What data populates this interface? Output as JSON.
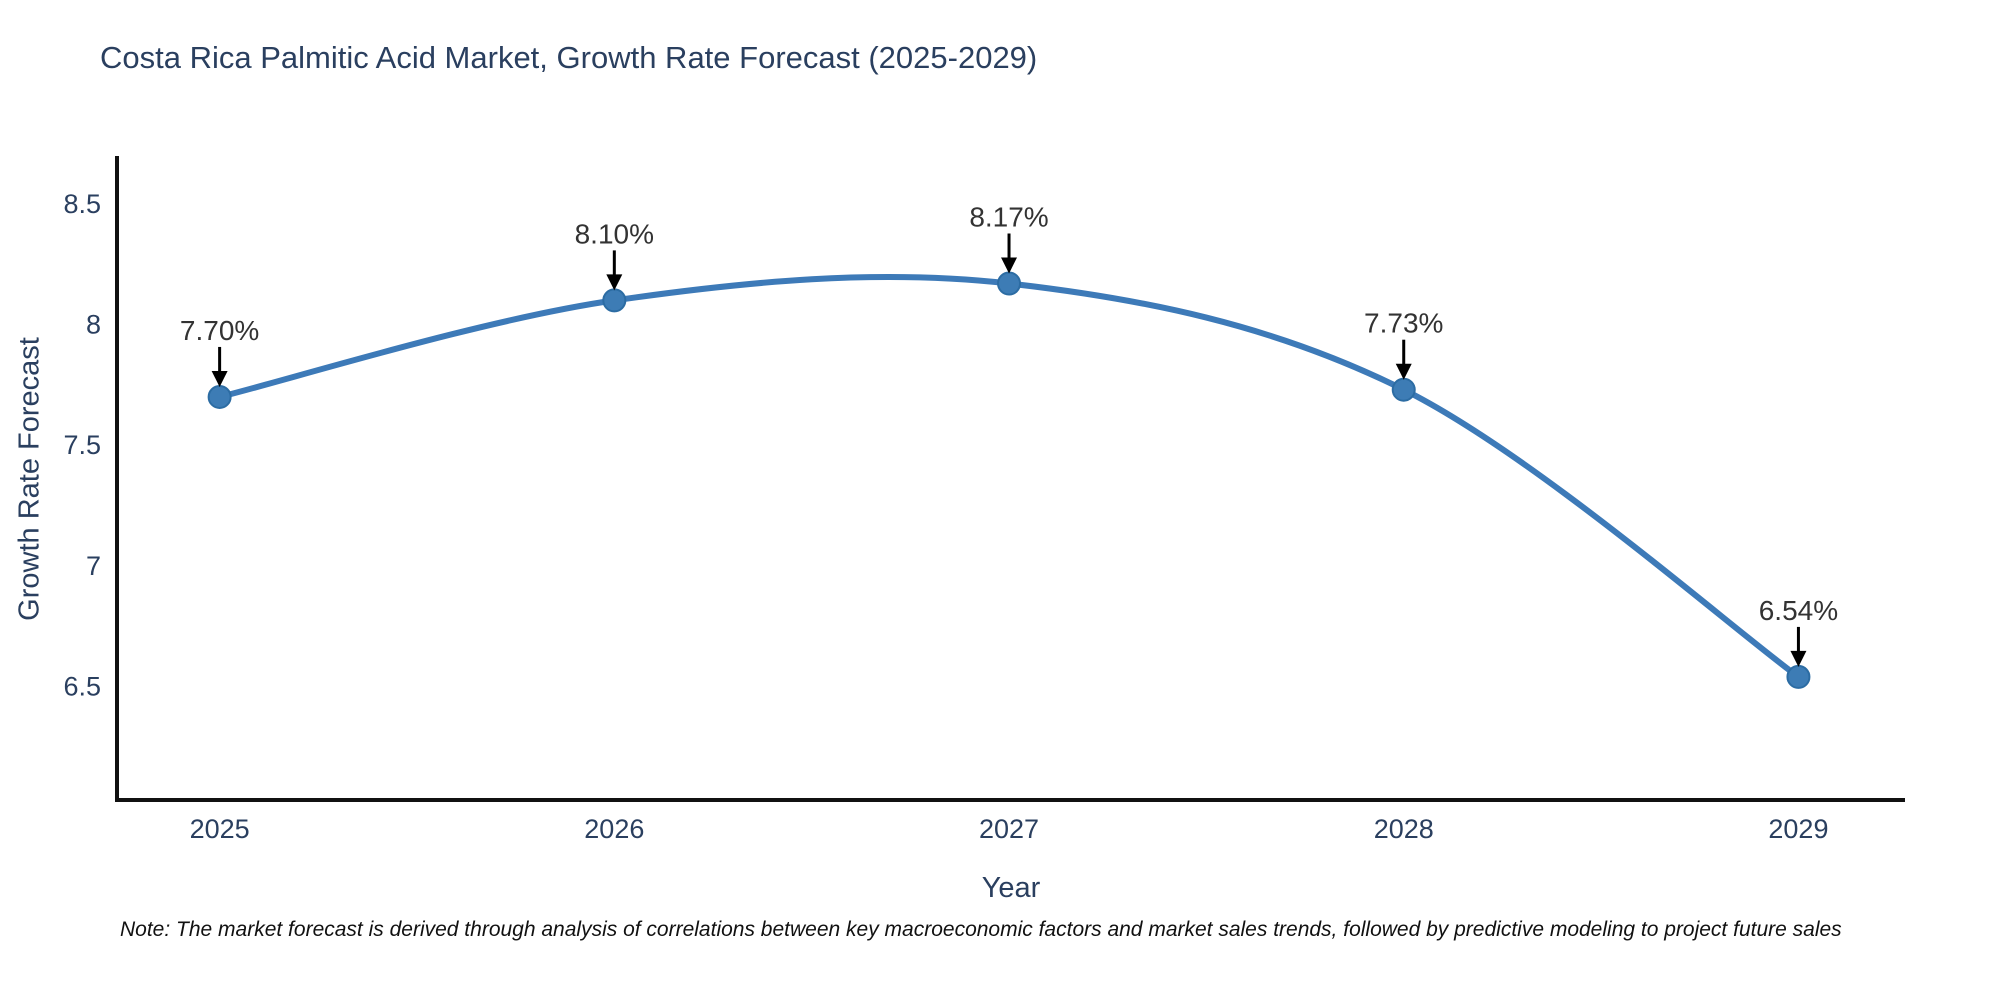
{
  "chart_data": {
    "type": "line",
    "title": "Costa Rica Palmitic Acid Market, Growth Rate Forecast (2025-2029)",
    "xlabel": "Year",
    "ylabel": "Growth Rate Forecast",
    "x": [
      2025,
      2026,
      2027,
      2028,
      2029
    ],
    "values": [
      7.7,
      8.1,
      8.17,
      7.73,
      6.54
    ],
    "point_labels": [
      "7.70%",
      "8.10%",
      "8.17%",
      "7.73%",
      "6.54%"
    ],
    "xtick_labels": [
      "2025",
      "2026",
      "2027",
      "2028",
      "2029"
    ],
    "yticks": [
      8.5,
      8.0,
      7.5,
      7.0,
      6.5
    ],
    "ytick_labels": [
      "8.5",
      "8",
      "7.5",
      "7",
      "6.5"
    ],
    "xlim": [
      2024.74,
      2029.27
    ],
    "ylim": [
      6.03,
      8.69
    ],
    "grid": false,
    "legend": "none",
    "line_shape": "spline",
    "colors": {
      "line": "#3d7ab8",
      "marker": "#3d7cb5",
      "marker_edge": "#2c6ca3",
      "axis": "#111111",
      "tick_label": "#2a3f5f",
      "title": "#2a3f5f",
      "annotation_text": "#333333",
      "arrow": "#000000"
    }
  },
  "note": {
    "text": "Note: The market forecast is derived through analysis of correlations between key macroeconomic factors and market sales trends, followed by predictive modeling to project future sales"
  }
}
